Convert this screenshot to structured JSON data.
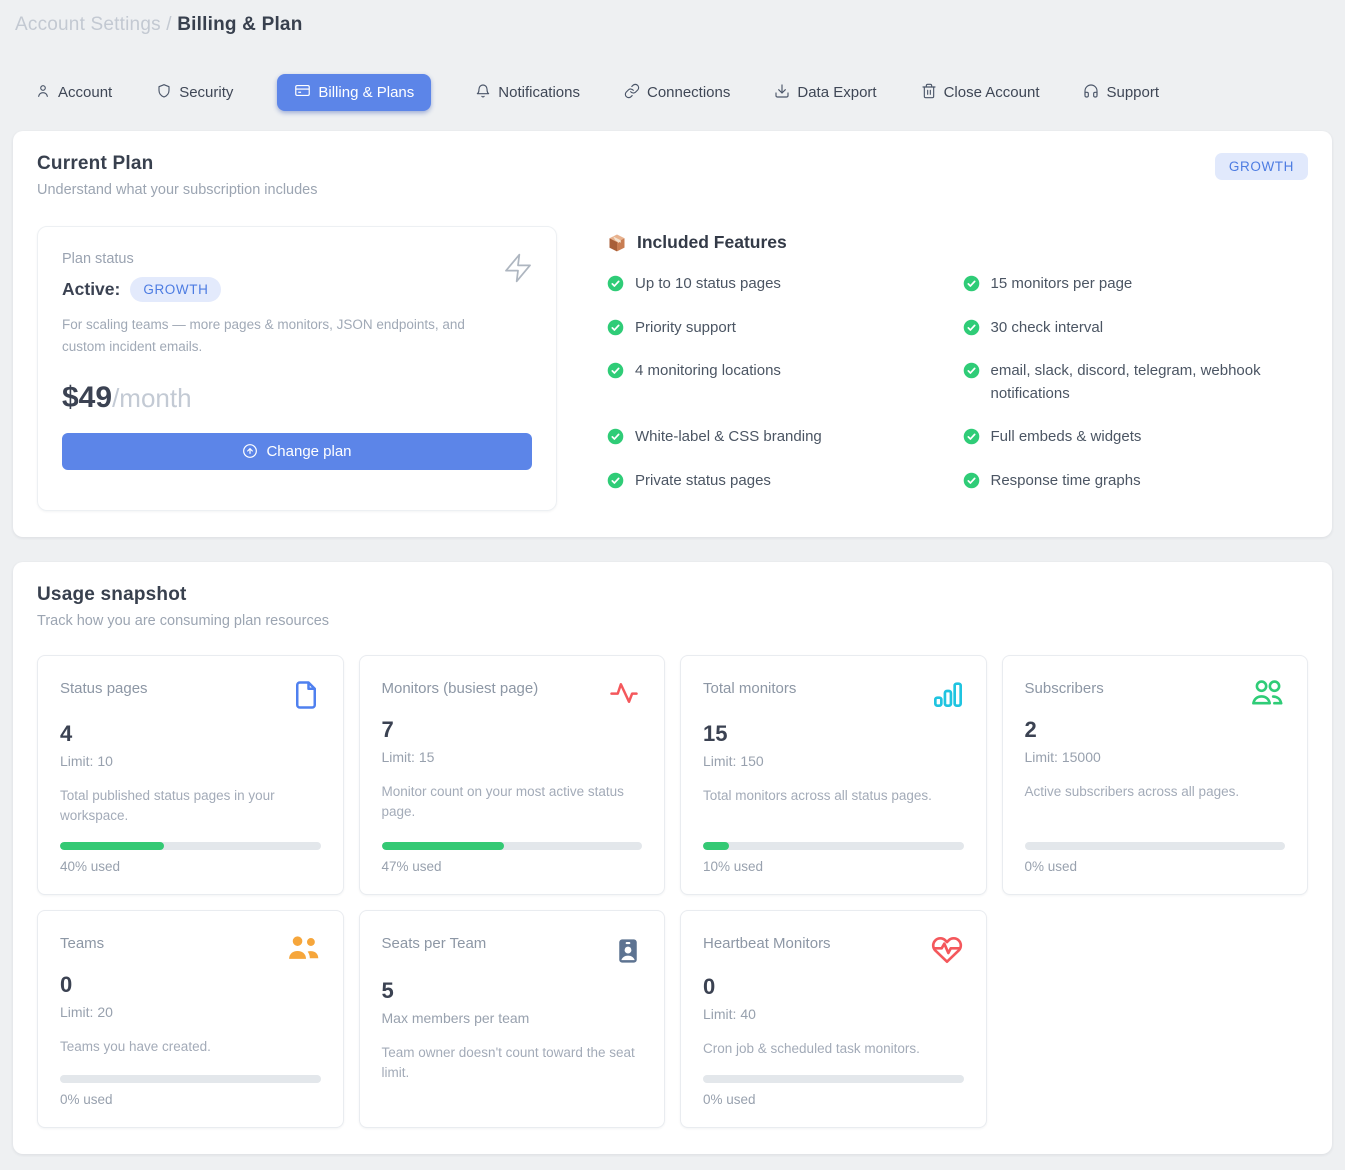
{
  "breadcrumb": {
    "section": "Account Settings",
    "separator": "/",
    "current": "Billing & Plan"
  },
  "tabs": [
    {
      "label": "Account",
      "icon": "person-icon",
      "active": false
    },
    {
      "label": "Security",
      "icon": "shield-icon",
      "active": false
    },
    {
      "label": "Billing & Plans",
      "icon": "credit-card-icon",
      "active": true
    },
    {
      "label": "Notifications",
      "icon": "bell-icon",
      "active": false
    },
    {
      "label": "Connections",
      "icon": "link-icon",
      "active": false
    },
    {
      "label": "Data Export",
      "icon": "download-icon",
      "active": false
    },
    {
      "label": "Close Account",
      "icon": "trash-icon",
      "active": false
    },
    {
      "label": "Support",
      "icon": "headset-icon",
      "active": false
    }
  ],
  "current_plan": {
    "title": "Current Plan",
    "subtitle": "Understand what your subscription includes",
    "corner_badge": "GROWTH",
    "status": {
      "label": "Plan status",
      "state": "Active:",
      "badge": "GROWTH",
      "description": "For scaling teams — more pages & monitors, JSON endpoints, and custom incident emails.",
      "price": "$49",
      "price_period": "/month",
      "change_button": "Change plan"
    },
    "features": {
      "heading": "Included Features",
      "heading_icon": "package-icon",
      "items": [
        "Up to 10 status pages",
        "15 monitors per page",
        "Priority support",
        "30 check interval",
        "4 monitoring locations",
        "email, slack, discord, telegram, webhook notifications",
        "White-label & CSS branding",
        "Full embeds & widgets",
        "Private status pages",
        "Response time graphs"
      ]
    }
  },
  "usage": {
    "title": "Usage snapshot",
    "subtitle": "Track how you are consuming plan resources",
    "cards": [
      {
        "label": "Status pages",
        "value": "4",
        "limit": "Limit: 10",
        "description": "Total published status pages in your workspace.",
        "percent": 40,
        "percent_label": "40% used",
        "icon": "file-icon"
      },
      {
        "label": "Monitors (busiest page)",
        "value": "7",
        "limit": "Limit: 15",
        "description": "Monitor count on your most active status page.",
        "percent": 47,
        "percent_label": "47% used",
        "icon": "activity-icon"
      },
      {
        "label": "Total monitors",
        "value": "15",
        "limit": "Limit: 150",
        "description": "Total monitors across all status pages.",
        "percent": 10,
        "percent_label": "10% used",
        "icon": "bar-chart-icon"
      },
      {
        "label": "Subscribers",
        "value": "2",
        "limit": "Limit: 15000",
        "description": "Active subscribers across all pages.",
        "percent": 0,
        "percent_label": "0% used",
        "icon": "users-outline-icon"
      },
      {
        "label": "Teams",
        "value": "0",
        "limit": "Limit: 20",
        "description": "Teams you have created.",
        "percent": 0,
        "percent_label": "0% used",
        "icon": "users-filled-icon"
      },
      {
        "label": "Seats per Team",
        "value": "5",
        "limit": "Max members per team",
        "description": "Team owner doesn't count toward the seat limit.",
        "percent": null,
        "percent_label": null,
        "icon": "id-badge-icon"
      },
      {
        "label": "Heartbeat Monitors",
        "value": "0",
        "limit": "Limit: 40",
        "description": "Cron job & scheduled task monitors.",
        "percent": 0,
        "percent_label": "0% used",
        "icon": "heart-pulse-icon"
      }
    ]
  },
  "colors": {
    "accent_blue": "#5c85e8",
    "badge_bg": "#e1e9fc",
    "badge_text": "#4d7ce2",
    "success_green": "#34c974",
    "icon_red": "#f4585c",
    "icon_cyan": "#1fc4e0",
    "icon_orange": "#f6a63b",
    "icon_slate": "#5d7391",
    "page_bg": "#eef0f2"
  }
}
